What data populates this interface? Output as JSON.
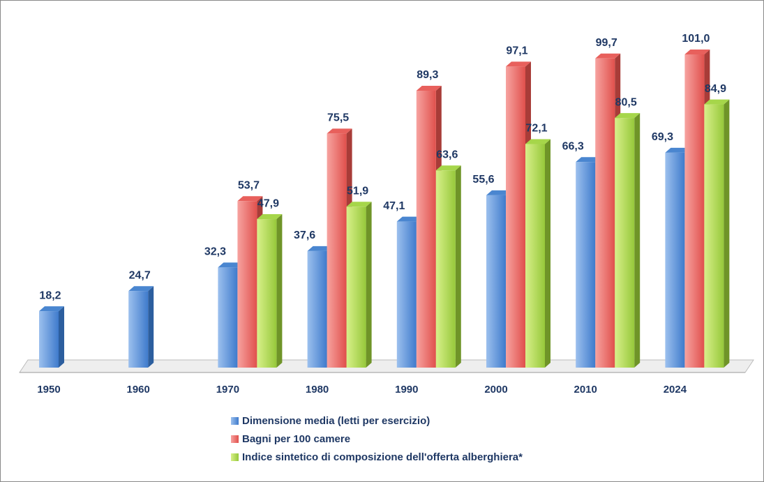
{
  "chart_data": {
    "type": "bar3d",
    "categories": [
      "1950",
      "1960",
      "1970",
      "1980",
      "1990",
      "2000",
      "2010",
      "2024"
    ],
    "series": [
      {
        "name": "Dimensione media (letti per esercizio)",
        "color": "#4a86d0",
        "values": [
          18.2,
          24.7,
          32.3,
          37.6,
          47.1,
          55.6,
          66.3,
          69.3
        ],
        "value_labels": [
          "18,2",
          "24,7",
          "32,3",
          "37,6",
          "47,1",
          "55,6",
          "66,3",
          "69,3"
        ]
      },
      {
        "name": "Bagni per 100 camere",
        "color": "#e8605c",
        "values": [
          null,
          null,
          53.7,
          75.5,
          89.3,
          97.1,
          99.7,
          101.0
        ],
        "value_labels": [
          null,
          null,
          "53,7",
          "75,5",
          "89,3",
          "97,1",
          "99,7",
          "101,0"
        ]
      },
      {
        "name": "Indice sintetico di composizione dell'offerta alberghiera*",
        "color": "#a6d64a",
        "values": [
          null,
          null,
          47.9,
          51.9,
          63.6,
          72.1,
          80.5,
          84.9
        ],
        "value_labels": [
          null,
          null,
          "47,9",
          "51,9",
          "63,6",
          "72,1",
          "80,5",
          "84,9"
        ]
      }
    ]
  }
}
